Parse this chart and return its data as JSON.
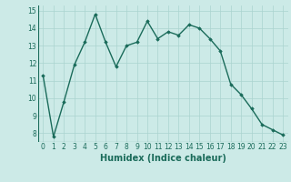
{
  "x": [
    0,
    1,
    2,
    3,
    4,
    5,
    6,
    7,
    8,
    9,
    10,
    11,
    12,
    13,
    14,
    15,
    16,
    17,
    18,
    19,
    20,
    21,
    22,
    23
  ],
  "y": [
    11.3,
    7.8,
    9.8,
    11.9,
    13.2,
    14.8,
    13.2,
    11.8,
    13.0,
    13.2,
    14.4,
    13.4,
    13.8,
    13.6,
    14.2,
    14.0,
    13.4,
    12.7,
    10.8,
    10.2,
    9.4,
    8.5,
    8.2,
    7.9
  ],
  "line_color": "#1a6b5a",
  "marker": "D",
  "marker_size": 1.8,
  "line_width": 1.0,
  "bg_color": "#cceae7",
  "grid_color": "#aad4d0",
  "xlabel": "Humidex (Indice chaleur)",
  "xlim": [
    -0.5,
    23.5
  ],
  "ylim": [
    7.5,
    15.3
  ],
  "yticks": [
    8,
    9,
    10,
    11,
    12,
    13,
    14,
    15
  ],
  "xticks": [
    0,
    1,
    2,
    3,
    4,
    5,
    6,
    7,
    8,
    9,
    10,
    11,
    12,
    13,
    14,
    15,
    16,
    17,
    18,
    19,
    20,
    21,
    22,
    23
  ],
  "tick_fontsize": 5.5,
  "xlabel_fontsize": 7.0,
  "label_color": "#1a6b5a"
}
